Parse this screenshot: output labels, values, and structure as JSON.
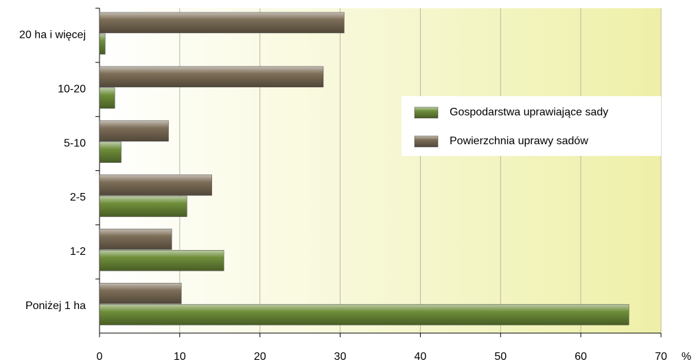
{
  "chart_data": {
    "type": "barh",
    "categories": [
      "20 ha i więcej",
      "10-20",
      "5-10",
      "2-5",
      "1-2",
      "Poniżej 1 ha"
    ],
    "series": [
      {
        "name": "Gospodarstwa uprawiające sady",
        "color": "#6f8f3a",
        "values": [
          0.7,
          1.9,
          2.7,
          10.9,
          15.5,
          66.0
        ]
      },
      {
        "name": "Powierzchnia uprawy sadów",
        "color": "#7d6e58",
        "values": [
          30.5,
          27.9,
          8.6,
          14.0,
          9.0,
          10.2
        ]
      }
    ],
    "xlim": [
      0,
      70
    ],
    "xticks": [
      0,
      10,
      20,
      30,
      40,
      50,
      60,
      70
    ],
    "xlabel": "%",
    "grid": true
  }
}
